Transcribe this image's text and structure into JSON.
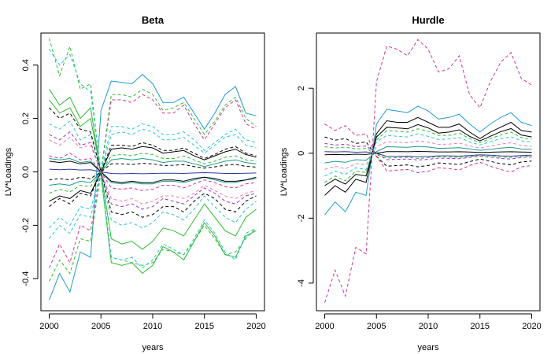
{
  "chart_data": [
    {
      "type": "line",
      "title": "Beta",
      "xlabel": "years",
      "ylabel": "LV*Loadings",
      "xlim": [
        1999.2,
        2020.8
      ],
      "ylim": [
        -0.52,
        0.52
      ],
      "xticks": [
        2000,
        2005,
        2010,
        2015,
        2020
      ],
      "yticks": [
        -0.4,
        -0.2,
        0.0,
        0.2,
        0.4
      ],
      "ytick_labels": [
        "-0.4",
        "-0.2",
        "0.0",
        "0.2",
        "0.4"
      ],
      "x": [
        2000,
        2001,
        2002,
        2003,
        2004,
        2005,
        2006,
        2007,
        2008,
        2009,
        2010,
        2011,
        2012,
        2013,
        2014,
        2015,
        2016,
        2017,
        2018,
        2019,
        2020
      ],
      "series": [
        {
          "color": "#1f9bd6",
          "style": "solid",
          "values": [
            -0.48,
            -0.38,
            -0.45,
            -0.3,
            -0.32,
            0.23,
            0.34,
            0.335,
            0.33,
            0.365,
            0.33,
            0.26,
            0.26,
            0.28,
            0.22,
            0.16,
            0.22,
            0.29,
            0.32,
            0.22,
            0.21
          ]
        },
        {
          "color": "#2ebd2e",
          "style": "dashed",
          "values": [
            0.5,
            0.36,
            0.47,
            0.31,
            0.33,
            -0.015,
            -0.32,
            -0.33,
            -0.34,
            -0.35,
            -0.34,
            -0.29,
            -0.3,
            -0.31,
            -0.26,
            -0.2,
            -0.25,
            -0.31,
            -0.3,
            -0.25,
            -0.21
          ]
        },
        {
          "color": "#2ebd2e",
          "style": "solid",
          "values": [
            0.31,
            0.25,
            0.28,
            0.2,
            0.24,
            -0.01,
            -0.34,
            -0.35,
            -0.34,
            -0.38,
            -0.35,
            -0.28,
            -0.3,
            -0.33,
            -0.26,
            -0.19,
            -0.24,
            -0.31,
            -0.32,
            -0.24,
            -0.22
          ]
        },
        {
          "color": "#27c7cf",
          "style": "dashed",
          "values": [
            0.46,
            0.4,
            0.44,
            0.33,
            0.3,
            0.0,
            -0.32,
            -0.33,
            -0.32,
            -0.36,
            -0.33,
            -0.27,
            -0.29,
            -0.31,
            -0.25,
            -0.18,
            -0.23,
            -0.3,
            -0.33,
            -0.23,
            -0.21
          ]
        },
        {
          "color": "#d6338f",
          "style": "dashed",
          "values": [
            -0.36,
            -0.27,
            -0.34,
            -0.2,
            -0.22,
            0.0,
            0.27,
            0.27,
            0.26,
            0.29,
            0.27,
            0.22,
            0.22,
            0.25,
            0.18,
            0.12,
            0.18,
            0.24,
            0.27,
            0.18,
            0.16
          ]
        },
        {
          "color": "#2ebd2e",
          "style": "dashed",
          "values": [
            -0.41,
            -0.33,
            -0.38,
            -0.25,
            -0.26,
            0.0,
            0.29,
            0.29,
            0.28,
            0.31,
            0.29,
            0.23,
            0.24,
            0.26,
            0.2,
            0.14,
            0.19,
            0.25,
            0.28,
            0.2,
            0.17
          ]
        },
        {
          "color": "#2ebd2e",
          "style": "solid",
          "values": [
            0.27,
            0.22,
            0.24,
            0.17,
            0.2,
            0.0,
            -0.25,
            -0.27,
            -0.26,
            -0.29,
            -0.26,
            -0.21,
            -0.22,
            -0.24,
            -0.18,
            -0.12,
            -0.17,
            -0.22,
            -0.24,
            -0.17,
            -0.14
          ]
        },
        {
          "color": "#27c7cf",
          "style": "dashed",
          "values": [
            0.18,
            0.16,
            0.19,
            0.12,
            0.14,
            0.0,
            -0.18,
            -0.2,
            -0.19,
            -0.21,
            -0.19,
            -0.15,
            -0.16,
            -0.18,
            -0.14,
            -0.09,
            -0.13,
            -0.17,
            -0.19,
            -0.14,
            -0.11
          ]
        },
        {
          "color": "#27c7cf",
          "style": "dashed",
          "values": [
            -0.25,
            -0.2,
            -0.23,
            -0.16,
            -0.17,
            0.0,
            0.17,
            0.17,
            0.16,
            0.18,
            0.17,
            0.14,
            0.14,
            0.15,
            0.12,
            0.08,
            0.11,
            0.14,
            0.16,
            0.12,
            0.11
          ]
        },
        {
          "color": "#27c7cf",
          "style": "dashed",
          "values": [
            -0.21,
            -0.17,
            -0.2,
            -0.13,
            -0.14,
            0.0,
            0.14,
            0.15,
            0.14,
            0.16,
            0.15,
            0.12,
            0.12,
            0.13,
            0.1,
            0.07,
            0.1,
            0.13,
            0.14,
            0.1,
            0.09
          ]
        },
        {
          "color": "#000000",
          "style": "dashed",
          "values": [
            0.24,
            0.2,
            0.22,
            0.16,
            0.15,
            0.0,
            -0.15,
            -0.16,
            -0.15,
            -0.17,
            -0.16,
            -0.13,
            -0.13,
            -0.15,
            -0.11,
            -0.08,
            -0.1,
            -0.14,
            -0.15,
            -0.11,
            -0.09
          ]
        },
        {
          "color": "#000000",
          "style": "dashed",
          "values": [
            -0.13,
            -0.1,
            -0.12,
            -0.08,
            -0.09,
            0.0,
            0.1,
            0.1,
            0.095,
            0.11,
            0.1,
            0.08,
            0.08,
            0.09,
            0.07,
            0.05,
            0.065,
            0.085,
            0.095,
            0.07,
            0.06
          ]
        },
        {
          "color": "#000000",
          "style": "solid",
          "values": [
            -0.11,
            -0.09,
            -0.1,
            -0.07,
            -0.08,
            0.0,
            0.085,
            0.09,
            0.085,
            0.095,
            0.09,
            0.07,
            0.075,
            0.08,
            0.06,
            0.045,
            0.06,
            0.075,
            0.085,
            0.065,
            0.055
          ]
        },
        {
          "color": "#9933cc",
          "style": "dashed",
          "values": [
            0.14,
            0.12,
            0.15,
            0.1,
            0.11,
            0.0,
            -0.12,
            -0.13,
            -0.12,
            -0.14,
            -0.13,
            -0.1,
            -0.11,
            -0.12,
            -0.09,
            -0.06,
            -0.08,
            -0.11,
            -0.12,
            -0.09,
            -0.08
          ]
        },
        {
          "color": "#e67eb0",
          "style": "dashed",
          "values": [
            0.12,
            0.1,
            0.13,
            0.09,
            0.1,
            0.0,
            -0.1,
            -0.11,
            -0.1,
            -0.12,
            -0.11,
            -0.09,
            -0.09,
            -0.1,
            -0.08,
            -0.05,
            -0.07,
            -0.09,
            -0.1,
            -0.08,
            -0.07
          ]
        },
        {
          "color": "#1a9b8a",
          "style": "solid",
          "values": [
            0.05,
            0.045,
            0.05,
            0.035,
            0.04,
            0.0,
            -0.04,
            -0.045,
            -0.04,
            -0.045,
            -0.045,
            -0.035,
            -0.035,
            -0.04,
            -0.03,
            -0.02,
            -0.03,
            -0.04,
            -0.04,
            -0.03,
            -0.025
          ]
        },
        {
          "color": "#000000",
          "style": "solid",
          "values": [
            0.04,
            0.035,
            0.04,
            0.03,
            0.035,
            0.0,
            -0.035,
            -0.04,
            -0.035,
            -0.04,
            -0.04,
            -0.03,
            -0.03,
            -0.035,
            -0.025,
            -0.02,
            -0.025,
            -0.035,
            -0.035,
            -0.03,
            -0.02
          ]
        },
        {
          "color": "#1a9b8a",
          "style": "solid",
          "values": [
            -0.05,
            -0.045,
            -0.05,
            -0.035,
            -0.04,
            0.0,
            0.045,
            0.05,
            0.045,
            0.05,
            0.045,
            0.035,
            0.04,
            0.04,
            0.03,
            0.02,
            0.03,
            0.04,
            0.045,
            0.035,
            0.03
          ]
        },
        {
          "color": "#2e3a9e",
          "style": "solid",
          "values": [
            0.01,
            0.008,
            0.01,
            0.007,
            0.008,
            0.0,
            -0.006,
            -0.007,
            -0.006,
            -0.007,
            -0.006,
            -0.005,
            -0.005,
            -0.006,
            -0.004,
            -0.003,
            -0.004,
            -0.006,
            -0.006,
            -0.005,
            -0.004
          ]
        },
        {
          "color": "#d6338f",
          "style": "dashed",
          "values": [
            0.06,
            0.05,
            0.07,
            0.045,
            0.05,
            0.0,
            -0.06,
            -0.065,
            -0.06,
            -0.07,
            -0.065,
            -0.05,
            -0.05,
            -0.06,
            -0.045,
            -0.03,
            -0.04,
            -0.055,
            -0.06,
            -0.045,
            -0.04
          ]
        },
        {
          "color": "#2ebd2e",
          "style": "dashed",
          "values": [
            -0.08,
            -0.065,
            -0.075,
            -0.05,
            -0.055,
            0.0,
            0.06,
            0.065,
            0.06,
            0.07,
            0.065,
            0.05,
            0.05,
            0.06,
            0.045,
            0.03,
            0.04,
            0.055,
            0.06,
            0.045,
            0.04
          ]
        },
        {
          "color": "#000000",
          "style": "dashed",
          "values": [
            -0.03,
            -0.025,
            -0.03,
            -0.02,
            -0.025,
            0.0,
            0.03,
            0.03,
            0.028,
            0.032,
            0.03,
            0.024,
            0.025,
            0.027,
            0.02,
            0.014,
            0.019,
            0.025,
            0.028,
            0.021,
            0.018
          ]
        }
      ]
    },
    {
      "type": "line",
      "title": "Hurdle",
      "xlabel": "years",
      "ylabel": "LV*Loadings",
      "xlim": [
        1999.2,
        2020.8
      ],
      "ylim": [
        -4.85,
        3.7
      ],
      "xticks": [
        2000,
        2005,
        2010,
        2015,
        2020
      ],
      "yticks": [
        -4,
        -2,
        0,
        2
      ],
      "ytick_labels": [
        "-4",
        "-2",
        "0",
        "2"
      ],
      "x": [
        2000,
        2001,
        2002,
        2003,
        2004,
        2005,
        2006,
        2007,
        2008,
        2009,
        2010,
        2011,
        2012,
        2013,
        2014,
        2015,
        2016,
        2017,
        2018,
        2019,
        2020
      ],
      "series": [
        {
          "color": "#d6338f",
          "style": "dashed",
          "values": [
            -4.6,
            -3.6,
            -4.4,
            -2.9,
            -3.1,
            2.2,
            3.3,
            3.2,
            3.0,
            3.5,
            3.2,
            2.5,
            2.6,
            3.0,
            1.8,
            1.4,
            2.2,
            2.8,
            3.1,
            2.3,
            2.1
          ]
        },
        {
          "color": "#1f9bd6",
          "style": "solid",
          "values": [
            -1.9,
            -1.5,
            -1.8,
            -1.2,
            -1.3,
            0.9,
            1.35,
            1.3,
            1.25,
            1.45,
            1.3,
            1.05,
            1.1,
            1.2,
            0.9,
            0.65,
            0.9,
            1.1,
            1.25,
            0.95,
            0.85
          ]
        },
        {
          "color": "#000000",
          "style": "solid",
          "values": [
            -1.3,
            -1.0,
            -1.2,
            -0.8,
            -0.9,
            0.6,
            1.0,
            0.95,
            0.95,
            1.1,
            0.95,
            0.8,
            0.8,
            0.9,
            0.65,
            0.45,
            0.65,
            0.8,
            0.95,
            0.7,
            0.65
          ]
        },
        {
          "color": "#000000",
          "style": "solid",
          "values": [
            -1.0,
            -0.8,
            -0.95,
            -0.65,
            -0.7,
            0.5,
            0.8,
            0.78,
            0.75,
            0.88,
            0.78,
            0.62,
            0.65,
            0.72,
            0.52,
            0.38,
            0.52,
            0.66,
            0.76,
            0.56,
            0.5
          ]
        },
        {
          "color": "#2ebd2e",
          "style": "dashed",
          "values": [
            -0.9,
            -0.7,
            -0.85,
            -0.55,
            -0.6,
            0.4,
            0.7,
            0.68,
            0.65,
            0.75,
            0.68,
            0.55,
            0.55,
            0.62,
            0.45,
            0.32,
            0.45,
            0.56,
            0.65,
            0.48,
            0.43
          ]
        },
        {
          "color": "#27c7cf",
          "style": "dashed",
          "values": [
            -0.7,
            -0.55,
            -0.65,
            -0.45,
            -0.5,
            0.35,
            0.55,
            0.52,
            0.5,
            0.6,
            0.52,
            0.42,
            0.44,
            0.48,
            0.35,
            0.25,
            0.35,
            0.45,
            0.5,
            0.38,
            0.34
          ]
        },
        {
          "color": "#000000",
          "style": "dashed",
          "values": [
            0.5,
            0.4,
            0.45,
            0.3,
            0.35,
            -0.1,
            -0.4,
            -0.38,
            -0.36,
            -0.42,
            -0.38,
            -0.3,
            -0.32,
            -0.35,
            -0.26,
            -0.18,
            -0.25,
            -0.32,
            -0.36,
            -0.27,
            -0.24
          ]
        },
        {
          "color": "#d6338f",
          "style": "dashed",
          "values": [
            0.9,
            0.7,
            0.85,
            0.55,
            0.6,
            -0.1,
            -0.55,
            -0.52,
            -0.5,
            -0.6,
            -0.55,
            -0.45,
            -0.47,
            -0.52,
            -0.38,
            -0.28,
            -0.4,
            -0.5,
            -0.58,
            -0.42,
            -0.38
          ]
        },
        {
          "color": "#9933cc",
          "style": "dashed",
          "values": [
            0.3,
            0.25,
            0.28,
            0.2,
            0.22,
            0.0,
            -0.2,
            -0.19,
            -0.18,
            -0.21,
            -0.19,
            -0.15,
            -0.16,
            -0.17,
            -0.13,
            -0.09,
            -0.12,
            -0.16,
            -0.18,
            -0.13,
            -0.12
          ]
        },
        {
          "color": "#1a9b8a",
          "style": "solid",
          "values": [
            -0.3,
            -0.25,
            -0.28,
            -0.2,
            -0.22,
            0.05,
            0.2,
            0.19,
            0.18,
            0.21,
            0.19,
            0.15,
            0.16,
            0.17,
            0.13,
            0.09,
            0.12,
            0.16,
            0.18,
            0.13,
            0.12
          ]
        },
        {
          "color": "#2e3a9e",
          "style": "solid",
          "values": [
            0.05,
            0.04,
            0.05,
            0.03,
            0.04,
            0.0,
            -0.1,
            -0.1,
            -0.09,
            -0.11,
            -0.1,
            -0.08,
            -0.08,
            -0.09,
            -0.07,
            -0.05,
            -0.06,
            -0.08,
            -0.09,
            -0.07,
            -0.06
          ]
        },
        {
          "color": "#000000",
          "style": "solid",
          "values": [
            -0.05,
            -0.04,
            -0.05,
            -0.03,
            -0.04,
            0.0,
            0.05,
            0.05,
            0.045,
            0.055,
            0.05,
            0.04,
            0.04,
            0.045,
            0.035,
            0.025,
            0.03,
            0.04,
            0.045,
            0.035,
            0.03
          ]
        },
        {
          "color": "#e67eb0",
          "style": "dashed",
          "values": [
            -0.5,
            -0.4,
            -0.48,
            -0.32,
            -0.35,
            0.2,
            0.35,
            0.34,
            0.32,
            0.38,
            0.34,
            0.27,
            0.28,
            0.31,
            0.23,
            0.16,
            0.22,
            0.28,
            0.32,
            0.24,
            0.21
          ]
        },
        {
          "color": "#2ebd2e",
          "style": "dashed",
          "values": [
            0.2,
            0.16,
            0.19,
            0.13,
            0.15,
            -0.05,
            -0.15,
            -0.14,
            -0.13,
            -0.16,
            -0.14,
            -0.11,
            -0.12,
            -0.13,
            -0.1,
            -0.07,
            -0.09,
            -0.12,
            -0.13,
            -0.1,
            -0.09
          ]
        }
      ]
    }
  ]
}
